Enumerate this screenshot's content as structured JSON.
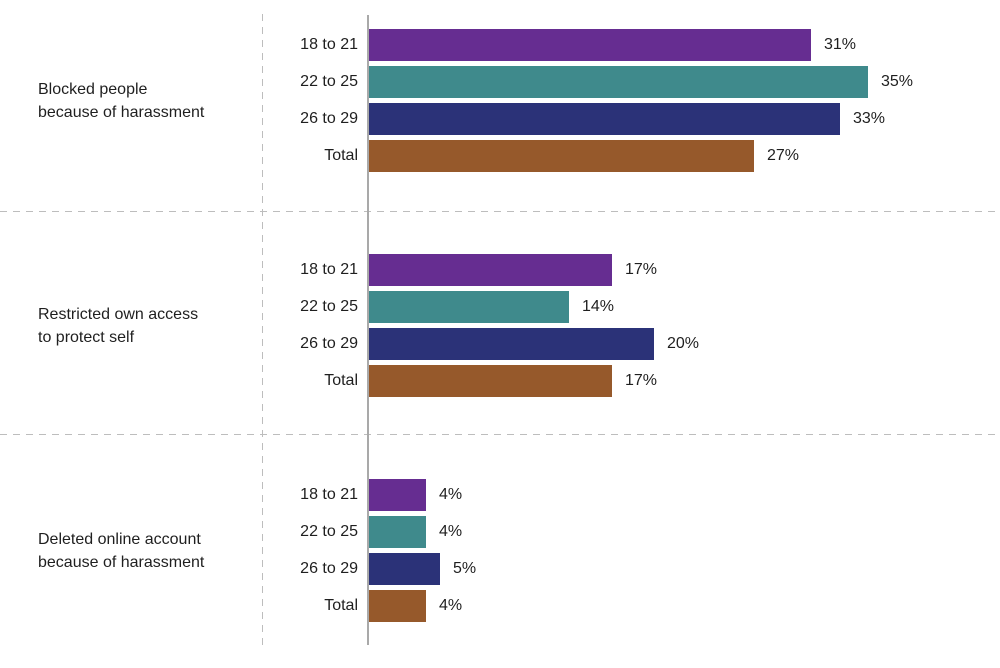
{
  "chart_data": {
    "type": "bar",
    "orientation": "horizontal",
    "title": "",
    "unit": "percent",
    "value_suffix": "%",
    "series_labels": [
      "18 to 21",
      "22 to 25",
      "26 to 29",
      "Total"
    ],
    "series_colors": [
      "#662d91",
      "#3f8a8c",
      "#2b3278",
      "#96592b"
    ],
    "xlim": [
      0,
      44
    ],
    "legend_position": "none",
    "grid": "dashed panel separators between groups, solid gray baseline at zero",
    "groups": [
      {
        "category": "Blocked people\nbecause of harassment",
        "values": [
          31,
          35,
          33,
          27
        ],
        "labels": [
          "31%",
          "35%",
          "33%",
          "27%"
        ]
      },
      {
        "category": "Restricted own access\nto protect self",
        "values": [
          17,
          14,
          20,
          17
        ],
        "labels": [
          "17%",
          "14%",
          "20%",
          "17%"
        ]
      },
      {
        "category": "Deleted online account\nbecause of harassment",
        "values": [
          4,
          4,
          5,
          4
        ],
        "labels": [
          "4%",
          "4%",
          "5%",
          "4%"
        ]
      }
    ]
  },
  "colors": {
    "axis_line": "#a9a9a9",
    "separator_dashed": "#bdbdbd",
    "text": "#1f1f1f",
    "background": "#ffffff"
  }
}
